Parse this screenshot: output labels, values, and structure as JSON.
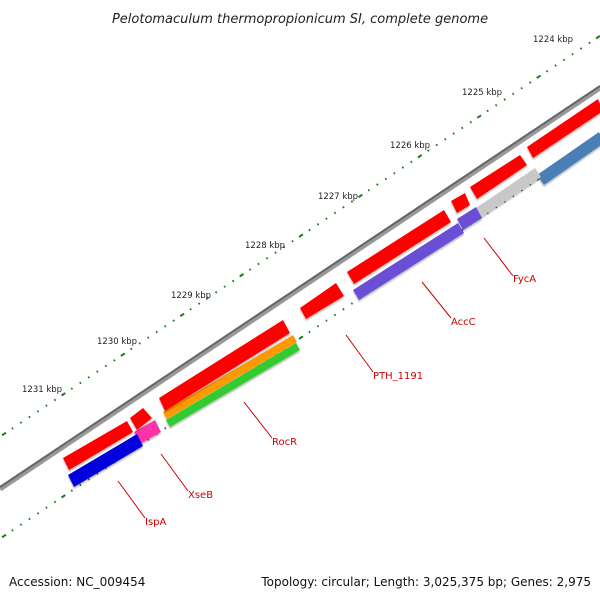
{
  "title": "Pelotomaculum thermopropionicum SI, complete genome",
  "footer": {
    "accession": "Accession: NC_009454",
    "topology": "Topology: circular; Length: 3,025,375 bp; Genes: 2,975"
  },
  "kbp_labels": [
    "1224 kbp",
    "1225 kbp",
    "1226 kbp",
    "1227 kbp",
    "1228 kbp",
    "1229 kbp",
    "1230 kbp",
    "1231 kbp"
  ],
  "gene_labels": [
    "FycA",
    "AccC",
    "PTH_1191",
    "RocR",
    "XseB",
    "IspA"
  ],
  "colors": {
    "backbone": "#777777",
    "gene_red": "#ff0000",
    "tick": "#1a7a1a",
    "label_red": "#cc0000",
    "blue": "#0000dd",
    "magenta": "#ff33aa",
    "orange": "#ff9900",
    "green": "#33cc33",
    "purple": "#6a4fd6",
    "gray": "#c8c8c8",
    "steel_blue": "#4a7fb5"
  }
}
